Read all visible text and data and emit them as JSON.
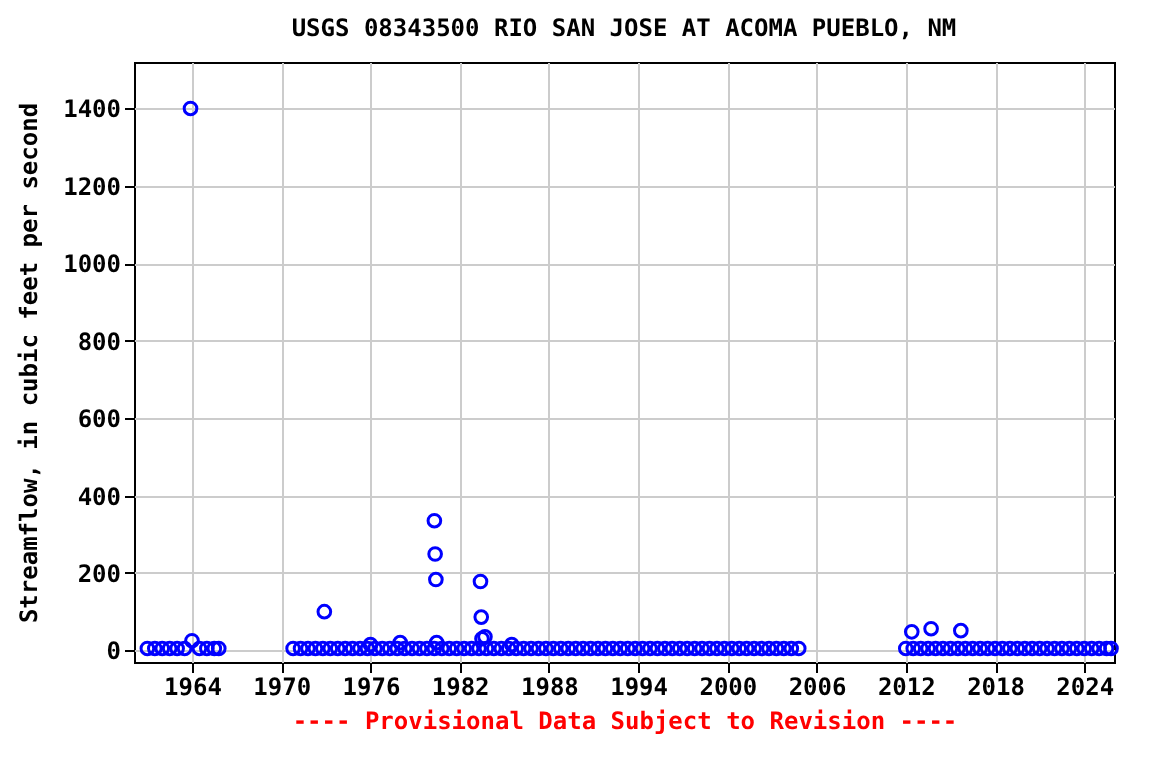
{
  "chart_data": {
    "type": "scatter",
    "title": "USGS 08343500 RIO SAN JOSE AT ACOMA PUEBLO, NM",
    "ylabel": "Streamflow, in cubic feet per second",
    "annotations": [
      "---- Provisional Data Subject to Revision ----"
    ],
    "xlim": [
      1960.1,
      2026
    ],
    "xticks": [
      1964,
      1970,
      1976,
      1982,
      1988,
      1994,
      2000,
      2006,
      2012,
      2018,
      2024
    ],
    "ylim": [
      -30,
      1520
    ],
    "yticks": [
      0,
      200,
      400,
      600,
      800,
      1000,
      1200,
      1400
    ],
    "grid": true,
    "marker": "circle",
    "series": [
      {
        "color": "#0000ff",
        "x": [
          1961.0,
          1961.5,
          1962.0,
          1962.5,
          1963.0,
          1963.5,
          1964.5,
          1965.0,
          1965.5,
          1965.8,
          1970.8,
          1971.3,
          1971.8,
          1972.3,
          1972.8,
          1973.3,
          1973.8,
          1974.3,
          1974.8,
          1975.3,
          1975.8,
          1976.3,
          1976.8,
          1977.3,
          1977.8,
          1978.3,
          1978.8,
          1979.3,
          1979.8,
          1980.3,
          1980.8,
          1981.3,
          1981.8,
          1982.3,
          1982.8,
          1983.3,
          1983.8,
          1984.3,
          1984.8,
          1985.3,
          1985.8,
          1986.3,
          1986.8,
          1987.3,
          1987.8,
          1988.3,
          1988.8,
          1989.3,
          1989.8,
          1990.3,
          1990.8,
          1991.3,
          1991.8,
          1992.3,
          1992.8,
          1993.3,
          1993.8,
          1994.3,
          1994.8,
          1995.3,
          1995.8,
          1996.3,
          1996.8,
          1997.3,
          1997.8,
          1998.3,
          1998.8,
          1999.3,
          1999.8,
          2000.3,
          2000.8,
          2001.3,
          2001.8,
          2002.3,
          2002.8,
          2003.3,
          2003.8,
          2004.3,
          2004.8,
          2012.0,
          2012.5,
          2013.0,
          2013.5,
          2014.0,
          2014.5,
          2015.0,
          2015.5,
          2016.0,
          2016.5,
          2017.0,
          2017.5,
          2018.0,
          2018.5,
          2019.0,
          2019.5,
          2020.0,
          2020.5,
          2021.0,
          2021.5,
          2022.0,
          2022.5,
          2023.0,
          2023.5,
          2024.0,
          2024.5,
          2025.0,
          2025.5,
          2025.8,
          1963.9,
          1964.0,
          1972.9,
          1976.0,
          1978.0,
          1980.3,
          1980.35,
          1980.4,
          1980.45,
          1983.4,
          1983.45,
          1983.5,
          1983.7,
          1985.5,
          2012.4,
          2013.7,
          2015.7
        ],
        "values": [
          5,
          5,
          5,
          5,
          5,
          5,
          5,
          5,
          5,
          5,
          5,
          5,
          5,
          5,
          5,
          5,
          5,
          5,
          5,
          5,
          5,
          5,
          5,
          5,
          5,
          5,
          5,
          5,
          5,
          5,
          5,
          5,
          5,
          5,
          5,
          5,
          5,
          5,
          5,
          5,
          5,
          5,
          5,
          5,
          5,
          5,
          5,
          5,
          5,
          5,
          5,
          5,
          5,
          5,
          5,
          5,
          5,
          5,
          5,
          5,
          5,
          5,
          5,
          5,
          5,
          5,
          5,
          5,
          5,
          5,
          5,
          5,
          5,
          5,
          5,
          5,
          5,
          5,
          5,
          5,
          5,
          5,
          5,
          5,
          5,
          5,
          5,
          5,
          5,
          5,
          5,
          5,
          5,
          5,
          5,
          5,
          5,
          5,
          5,
          5,
          5,
          5,
          5,
          5,
          5,
          5,
          5,
          5,
          1400,
          25,
          100,
          15,
          20,
          335,
          249,
          183,
          20,
          178,
          86,
          30,
          35,
          15,
          48,
          56,
          51
        ]
      }
    ]
  }
}
